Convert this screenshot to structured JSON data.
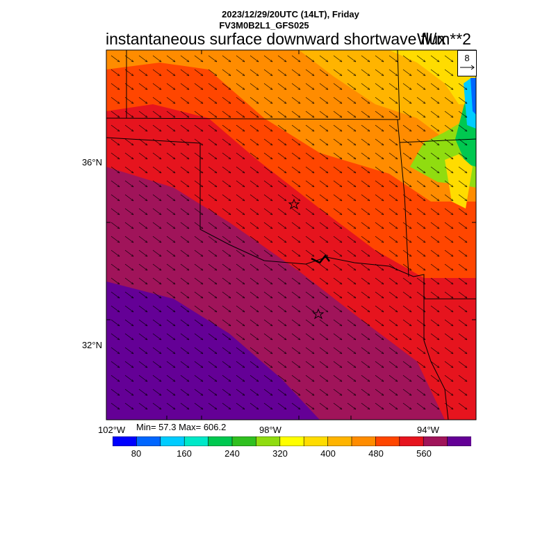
{
  "header": {
    "line1": "2023/12/29/20UTC (14LT), Friday",
    "line2": "FV3M0B2L1_GFS025",
    "field_title": "instantaneous surface downward shortwave flux",
    "units": "W/m**2"
  },
  "vector_reference": {
    "value": "8"
  },
  "axes": {
    "lat_labels": [
      "36°N",
      "32°N"
    ],
    "lon_labels": [
      "102°W",
      "98°W",
      "94°W"
    ]
  },
  "stats": {
    "text": "Min= 57.3 Max= 606.2"
  },
  "colorbar": {
    "colors": [
      "#0000ff",
      "#0066ff",
      "#00ccff",
      "#00e8c8",
      "#00c850",
      "#30c020",
      "#90dc10",
      "#ffff00",
      "#ffdc00",
      "#ffb400",
      "#ff8c00",
      "#ff4600",
      "#e6141e",
      "#a0145a",
      "#640096"
    ],
    "labels": [
      "80",
      "160",
      "240",
      "320",
      "400",
      "480",
      "560"
    ]
  },
  "markers": {
    "stars": 2
  }
}
